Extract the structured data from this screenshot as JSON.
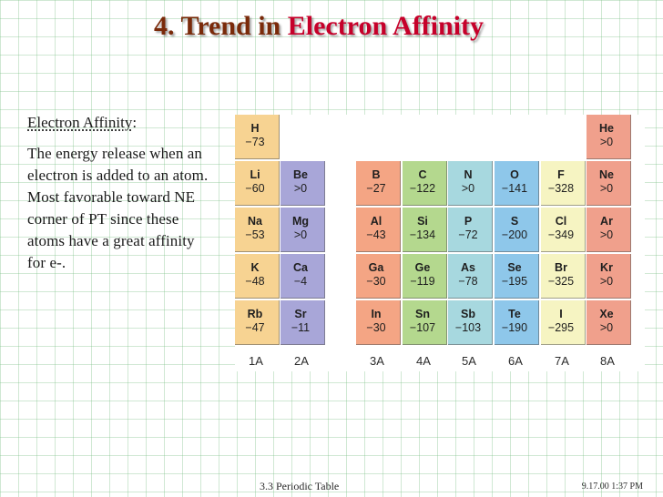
{
  "slide": {
    "title_prefix": "4. Trend in",
    "title_highlight": "Electron Affinity",
    "definition_heading": "Electron Affinity",
    "definition_colon": ":",
    "definition_text": "The energy release when an electron is added to an atom. Most favorable toward NE corner of PT since these atoms have a great affinity for e-."
  },
  "colors": {
    "1A": "#f7d392",
    "2A": "#a8a6d8",
    "3A": "#f4a584",
    "4A": "#b4d88e",
    "5A": "#a7d8df",
    "6A": "#8ec7ea",
    "7A": "#f6f4c2",
    "8A": "#f0a08c"
  },
  "periodic_table": {
    "group_labels": [
      "1A",
      "2A",
      "3A",
      "4A",
      "5A",
      "6A",
      "7A",
      "8A"
    ],
    "elements": [
      {
        "symbol": "H",
        "value": "−73",
        "group": "1A",
        "period": 1
      },
      {
        "symbol": "He",
        "value": ">0",
        "group": "8A",
        "period": 1
      },
      {
        "symbol": "Li",
        "value": "−60",
        "group": "1A",
        "period": 2
      },
      {
        "symbol": "Be",
        "value": ">0",
        "group": "2A",
        "period": 2
      },
      {
        "symbol": "B",
        "value": "−27",
        "group": "3A",
        "period": 2
      },
      {
        "symbol": "C",
        "value": "−122",
        "group": "4A",
        "period": 2
      },
      {
        "symbol": "N",
        "value": ">0",
        "group": "5A",
        "period": 2
      },
      {
        "symbol": "O",
        "value": "−141",
        "group": "6A",
        "period": 2
      },
      {
        "symbol": "F",
        "value": "−328",
        "group": "7A",
        "period": 2
      },
      {
        "symbol": "Ne",
        "value": ">0",
        "group": "8A",
        "period": 2
      },
      {
        "symbol": "Na",
        "value": "−53",
        "group": "1A",
        "period": 3
      },
      {
        "symbol": "Mg",
        "value": ">0",
        "group": "2A",
        "period": 3
      },
      {
        "symbol": "Al",
        "value": "−43",
        "group": "3A",
        "period": 3
      },
      {
        "symbol": "Si",
        "value": "−134",
        "group": "4A",
        "period": 3
      },
      {
        "symbol": "P",
        "value": "−72",
        "group": "5A",
        "period": 3
      },
      {
        "symbol": "S",
        "value": "−200",
        "group": "6A",
        "period": 3
      },
      {
        "symbol": "Cl",
        "value": "−349",
        "group": "7A",
        "period": 3
      },
      {
        "symbol": "Ar",
        "value": ">0",
        "group": "8A",
        "period": 3
      },
      {
        "symbol": "K",
        "value": "−48",
        "group": "1A",
        "period": 4
      },
      {
        "symbol": "Ca",
        "value": "−4",
        "group": "2A",
        "period": 4
      },
      {
        "symbol": "Ga",
        "value": "−30",
        "group": "3A",
        "period": 4
      },
      {
        "symbol": "Ge",
        "value": "−119",
        "group": "4A",
        "period": 4
      },
      {
        "symbol": "As",
        "value": "−78",
        "group": "5A",
        "period": 4
      },
      {
        "symbol": "Se",
        "value": "−195",
        "group": "6A",
        "period": 4
      },
      {
        "symbol": "Br",
        "value": "−325",
        "group": "7A",
        "period": 4
      },
      {
        "symbol": "Kr",
        "value": ">0",
        "group": "8A",
        "period": 4
      },
      {
        "symbol": "Rb",
        "value": "−47",
        "group": "1A",
        "period": 5
      },
      {
        "symbol": "Sr",
        "value": "−11",
        "group": "2A",
        "period": 5
      },
      {
        "symbol": "In",
        "value": "−30",
        "group": "3A",
        "period": 5
      },
      {
        "symbol": "Sn",
        "value": "−107",
        "group": "4A",
        "period": 5
      },
      {
        "symbol": "Sb",
        "value": "−103",
        "group": "5A",
        "period": 5
      },
      {
        "symbol": "Te",
        "value": "−190",
        "group": "6A",
        "period": 5
      },
      {
        "symbol": "I",
        "value": "−295",
        "group": "7A",
        "period": 5
      },
      {
        "symbol": "Xe",
        "value": ">0",
        "group": "8A",
        "period": 5
      }
    ]
  },
  "footer": {
    "section": "3.3  Periodic Table",
    "timestamp": "9.17.00 1:37 PM"
  }
}
